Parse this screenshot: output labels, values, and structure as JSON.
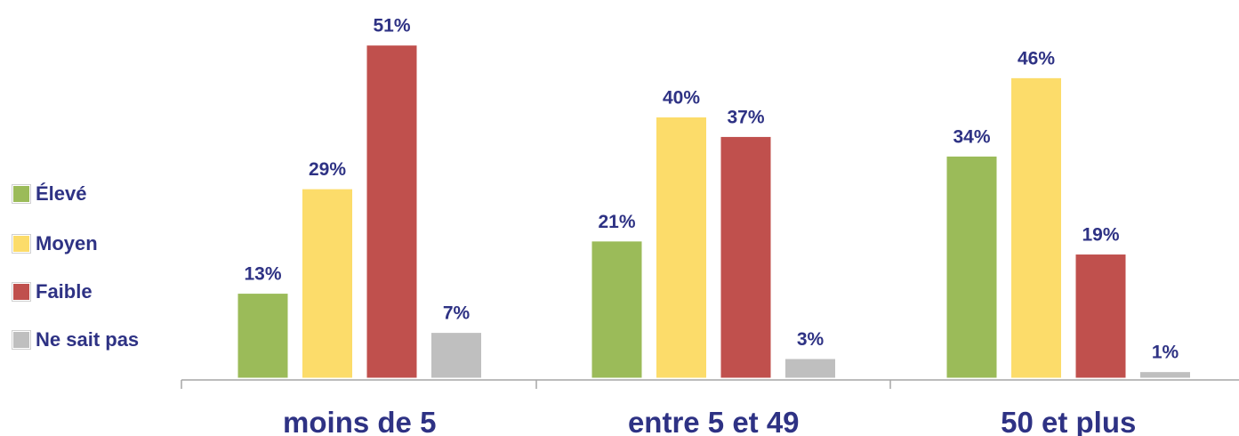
{
  "chart_data": {
    "type": "bar",
    "categories": [
      "moins de 5",
      "entre 5 et 49",
      "50 et plus"
    ],
    "series": [
      {
        "name": "Élevé",
        "values": [
          13,
          21,
          34
        ],
        "color": "#9bbb59"
      },
      {
        "name": "Moyen",
        "values": [
          29,
          40,
          46
        ],
        "color": "#fcdc6a"
      },
      {
        "name": "Faible",
        "values": [
          51,
          37,
          19
        ],
        "color": "#c0504d"
      },
      {
        "name": "Ne sait pas",
        "values": [
          7,
          3,
          1
        ],
        "color": "#bfbfbf"
      }
    ],
    "value_suffix": "%",
    "ylim": [
      0,
      55
    ],
    "legend_position": "left",
    "grid": false
  }
}
